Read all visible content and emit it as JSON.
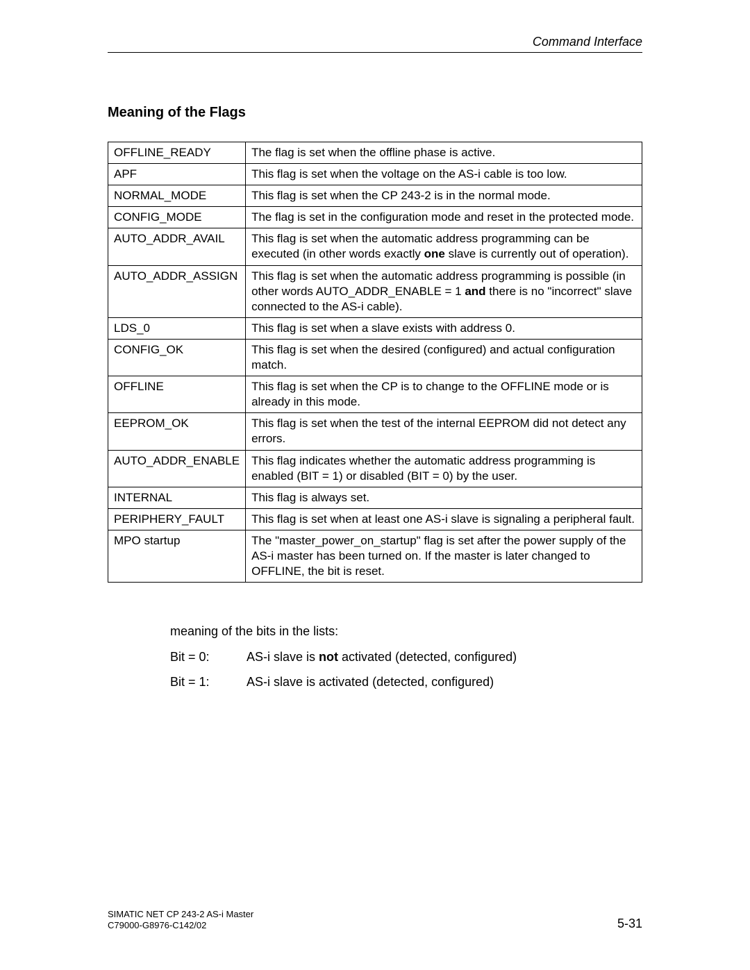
{
  "header": {
    "title": "Command Interface"
  },
  "section": {
    "title": "Meaning of the Flags"
  },
  "table": {
    "rows": [
      {
        "name": "OFFLINE_READY",
        "desc": "The flag is set when the offline phase is active."
      },
      {
        "name": "APF",
        "desc": "This flag is set when the voltage on the AS-i cable is too low."
      },
      {
        "name": "NORMAL_MODE",
        "desc": "This flag is set when the CP  243-2 is in the normal mode."
      },
      {
        "name": "CONFIG_MODE",
        "desc": "The flag is set in the configuration mode and reset in the protected mode."
      },
      {
        "name": "AUTO_ADDR_AVAIL",
        "desc_parts": [
          "This flag is set when the automatic address programming can be executed (in other words exactly ",
          {
            "bold": "one"
          },
          " slave is currently out of operation)."
        ]
      },
      {
        "name": "AUTO_ADDR_ASSIGN",
        "desc_parts": [
          "This flag is set when the automatic address programming is possible (in other words AUTO_ADDR_ENABLE = 1 ",
          {
            "bold": "and"
          },
          " there is no \"incorrect\" slave connected to the AS-i cable)."
        ]
      },
      {
        "name": "LDS_0",
        "desc": "This flag is set when a slave exists with address 0."
      },
      {
        "name": "CONFIG_OK",
        "desc": "This flag is set when the desired (configured) and actual configuration match."
      },
      {
        "name": "OFFLINE",
        "desc": "This flag is set when the CP is to change to the OFFLINE mode or is already in this mode."
      },
      {
        "name": "EEPROM_OK",
        "desc": "This flag is set when the test of the internal EEPROM did not detect any errors."
      },
      {
        "name": "AUTO_ADDR_ENABLE",
        "desc": "This flag indicates whether the automatic address programming is enabled (BIT = 1) or disabled (BIT = 0) by the user."
      },
      {
        "name": "INTERNAL",
        "desc": "This flag is always set."
      },
      {
        "name": "PERIPHERY_FAULT",
        "desc": "This flag is set when at least one AS-i slave is signaling a peripheral fault."
      },
      {
        "name": "MPO startup",
        "desc": "The \"master_power_on_startup\" flag is set after the power supply of the AS-i master has been turned on. If the master is later changed to OFFLINE, the bit is reset."
      }
    ]
  },
  "below": {
    "intro": "meaning of the bits in the lists:",
    "bit0_label": "Bit = 0:",
    "bit0_pre": "AS-i slave is ",
    "bit0_bold": "not",
    "bit0_post": " activated (detected, configured)",
    "bit1_label": "Bit = 1:",
    "bit1_text": "AS-i slave is activated (detected, configured)"
  },
  "footer": {
    "line1": "SIMATIC NET CP 243-2 AS-i Master",
    "line2": "C79000-G8976-C142/02",
    "pagenum": "5-31"
  }
}
